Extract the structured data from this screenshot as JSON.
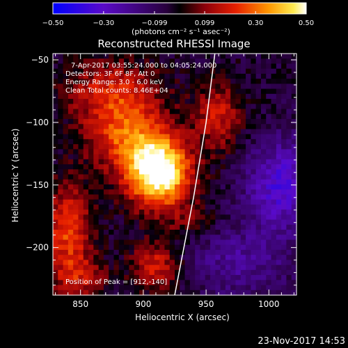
{
  "chart_data": {
    "type": "heatmap",
    "title": "Reconstructed RHESSI Image",
    "xlabel": "Heliocentric X (arcsec)",
    "ylabel": "Heliocentric Y (arcsec)",
    "xlim": [
      828,
      1022
    ],
    "ylim": [
      -238,
      -45
    ],
    "x_ticks": [
      850,
      900,
      950,
      1000
    ],
    "y_ticks": [
      -50,
      -100,
      -150,
      -200
    ],
    "colorbar": {
      "min": -0.5,
      "max": 0.5,
      "ticks": [
        {
          "value": -0.5,
          "label": "−0.50"
        },
        {
          "value": -0.3,
          "label": "−0.30"
        },
        {
          "value": -0.099,
          "label": "−0.099"
        },
        {
          "value": 0.099,
          "label": "0.099"
        },
        {
          "value": 0.3,
          "label": "0.30"
        },
        {
          "value": 0.5,
          "label": "0.50"
        }
      ],
      "unit_label": "(photons cm⁻² s⁻¹ asec⁻²)"
    },
    "annotations": [
      "7-Apr-2017 03:55:24.000 to 04:05:24.000",
      "Detectors: 3F 6F 8F, Att 0",
      "Energy Range: 3.0 - 6.0 keV",
      "Clean    Total counts: 8.46E+04"
    ],
    "peak_text": "Position of Peak = [912,-140]",
    "peak": {
      "x": 912,
      "y": -140,
      "value": 0.5
    },
    "blobs": [
      {
        "x": 912,
        "y": -140,
        "sx": 18,
        "sy": 20,
        "amp": 0.62
      },
      {
        "x": 885,
        "y": -110,
        "sx": 22,
        "sy": 20,
        "amp": 0.28
      },
      {
        "x": 875,
        "y": -75,
        "sx": 28,
        "sy": 18,
        "amp": 0.22
      },
      {
        "x": 840,
        "y": -185,
        "sx": 14,
        "sy": 26,
        "amp": 0.3
      },
      {
        "x": 960,
        "y": -95,
        "sx": 14,
        "sy": 20,
        "amp": 0.22
      },
      {
        "x": 910,
        "y": -215,
        "sx": 14,
        "sy": 14,
        "amp": 0.25
      },
      {
        "x": 850,
        "y": -225,
        "sx": 16,
        "sy": 12,
        "amp": 0.18
      },
      {
        "x": 940,
        "y": -180,
        "sx": 16,
        "sy": 10,
        "amp": 0.1
      },
      {
        "x": 1010,
        "y": -150,
        "sx": 20,
        "sy": 25,
        "amp": -0.28
      },
      {
        "x": 975,
        "y": -210,
        "sx": 30,
        "sy": 20,
        "amp": -0.15
      }
    ],
    "baseline": -0.05,
    "limb": [
      [
        957,
        -45
      ],
      [
        950,
        -100
      ],
      [
        940,
        -160
      ],
      [
        925,
        -238
      ]
    ]
  },
  "footer": {
    "date": "23-Nov-2017 14:53"
  }
}
